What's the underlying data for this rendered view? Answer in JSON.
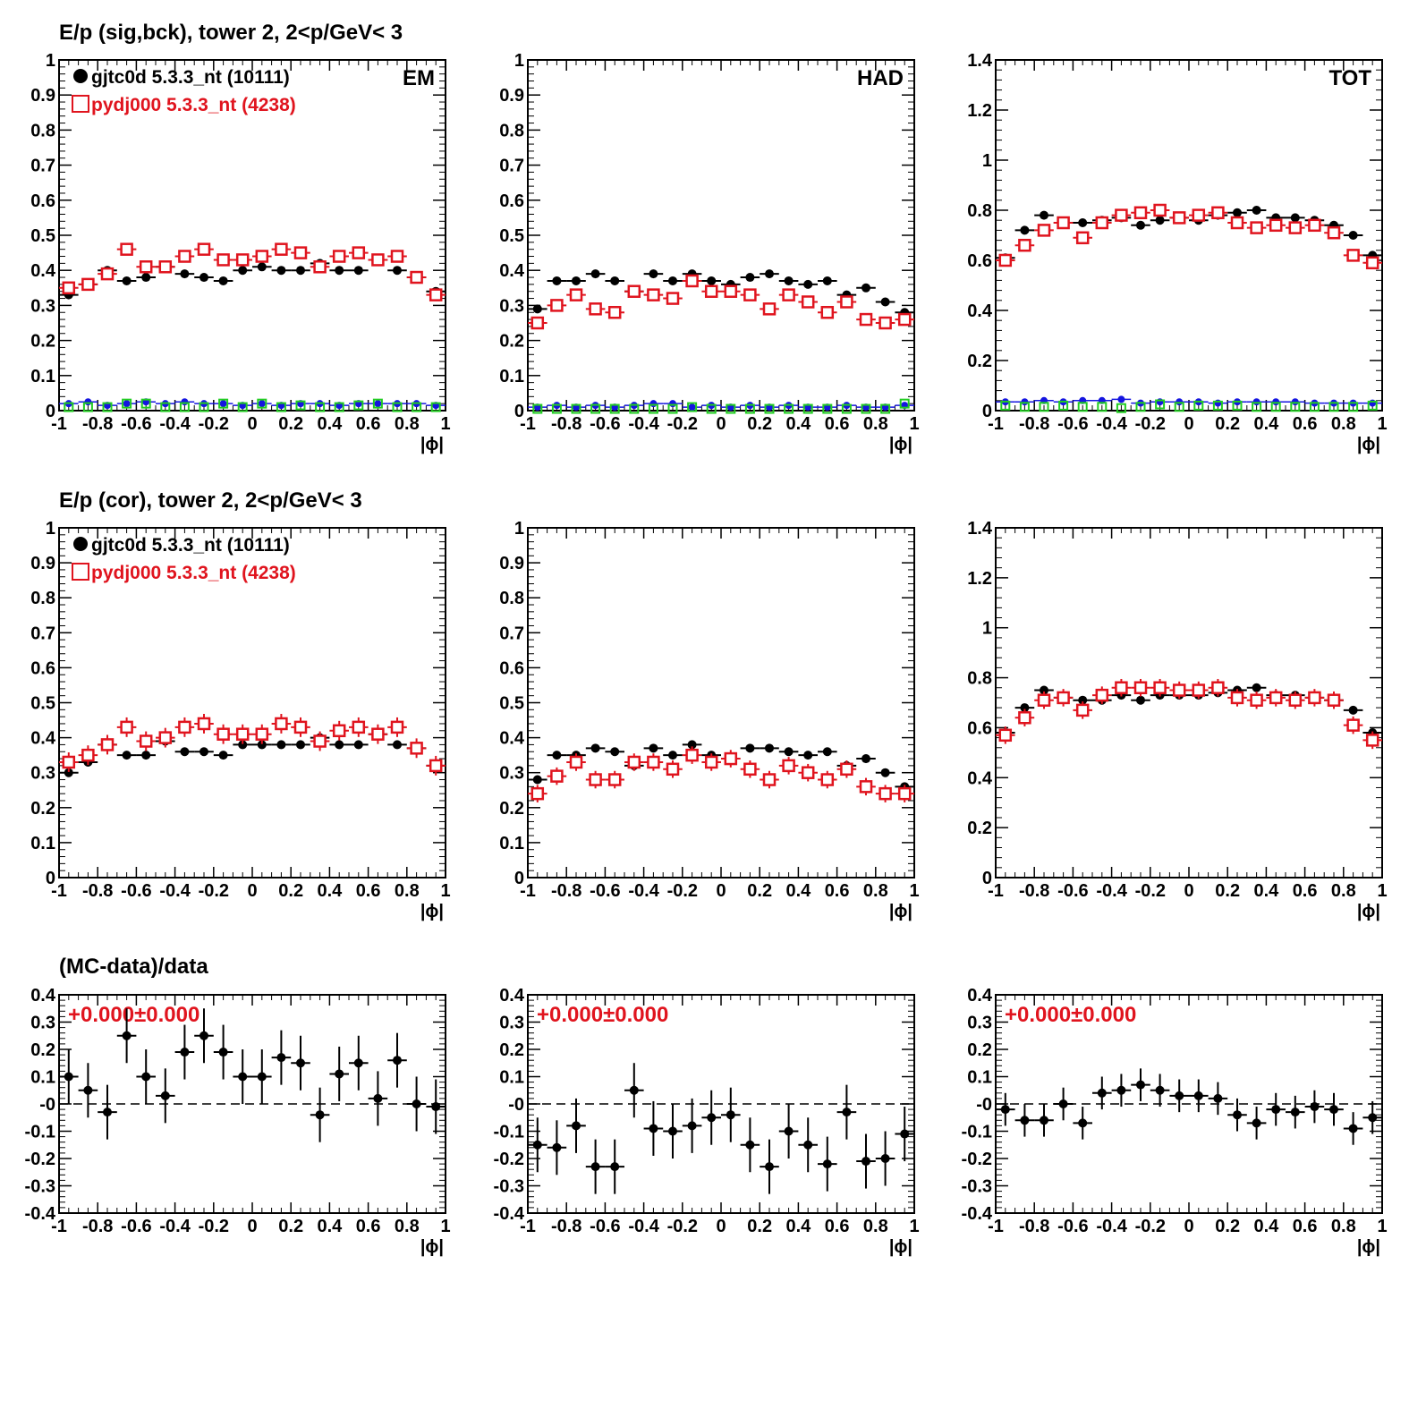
{
  "colors": {
    "data": "#000000",
    "mc": "#e0141e",
    "bg_blue": "#1414e0",
    "bg_green": "#22cc22"
  },
  "row_titles": [
    "E/p (sig,bck), tower 2,  2<p/GeV< 3",
    "E/p (cor), tower 2,  2<p/GeV< 3",
    "(MC-data)/data"
  ],
  "legend": {
    "data": "gjtc0d 5.3.3_nt (10111)",
    "mc": "pydj000 5.3.3_nt (4238)"
  },
  "fit_label": "+0.000±0.000",
  "chart_data": [
    {
      "type": "scatter",
      "row": 0,
      "col": 0,
      "tag": "EM",
      "xlabel": "|ϕ|",
      "xlim": [
        -1,
        1
      ],
      "ylim": [
        0,
        1
      ],
      "yticks": [
        0,
        0.1,
        0.2,
        0.3,
        0.4,
        0.5,
        0.6,
        0.7,
        0.8,
        0.9,
        1
      ],
      "ytick_labels": [
        "0",
        "0.1",
        "0.2",
        "0.3",
        "0.4",
        "0.5",
        "0.6",
        "0.7",
        "0.8",
        "0.9",
        "1"
      ],
      "legend": true,
      "series": [
        {
          "key": "data",
          "name": "gjtc0d 5.3.3_nt (10111)",
          "marker": "filled-circle",
          "values": [
            0.33,
            0.36,
            0.4,
            0.37,
            0.38,
            0.41,
            0.39,
            0.38,
            0.37,
            0.4,
            0.41,
            0.4,
            0.4,
            0.42,
            0.4,
            0.4,
            0.43,
            0.4,
            0.38,
            0.34
          ],
          "yerr": 0.006
        },
        {
          "key": "mc",
          "name": "pydj000 5.3.3_nt (4238)",
          "marker": "open-square",
          "values": [
            0.35,
            0.36,
            0.39,
            0.46,
            0.41,
            0.41,
            0.44,
            0.46,
            0.43,
            0.43,
            0.44,
            0.46,
            0.45,
            0.41,
            0.44,
            0.45,
            0.43,
            0.44,
            0.38,
            0.33
          ],
          "yerr": 0.012
        },
        {
          "key": "bg_blue",
          "marker": "small-circle",
          "values": [
            0.02,
            0.025,
            0.015,
            0.02,
            0.025,
            0.02,
            0.025,
            0.02,
            0.02,
            0.015,
            0.02,
            0.015,
            0.02,
            0.02,
            0.015,
            0.02,
            0.02,
            0.02,
            0.02,
            0.015
          ],
          "yerr": 0
        },
        {
          "key": "bg_green",
          "marker": "open-square-small",
          "values": [
            0.01,
            0.01,
            0.01,
            0.02,
            0.02,
            0.01,
            0.01,
            0.01,
            0.02,
            0.01,
            0.02,
            0.01,
            0.015,
            0.01,
            0.01,
            0.015,
            0.02,
            0.01,
            0.01,
            0.01
          ],
          "yerr": 0
        }
      ]
    },
    {
      "type": "scatter",
      "row": 0,
      "col": 1,
      "tag": "HAD",
      "xlabel": "|ϕ|",
      "xlim": [
        -1,
        1
      ],
      "ylim": [
        0,
        1
      ],
      "yticks": [
        0,
        0.1,
        0.2,
        0.3,
        0.4,
        0.5,
        0.6,
        0.7,
        0.8,
        0.9,
        1
      ],
      "ytick_labels": [
        "0",
        "0.1",
        "0.2",
        "0.3",
        "0.4",
        "0.5",
        "0.6",
        "0.7",
        "0.8",
        "0.9",
        "1"
      ],
      "legend": false,
      "series": [
        {
          "key": "data",
          "marker": "filled-circle",
          "values": [
            0.29,
            0.37,
            0.37,
            0.39,
            0.37,
            0.34,
            0.39,
            0.37,
            0.39,
            0.37,
            0.36,
            0.38,
            0.39,
            0.37,
            0.36,
            0.37,
            0.33,
            0.35,
            0.31,
            0.28
          ],
          "yerr": 0.008
        },
        {
          "key": "mc",
          "marker": "open-square",
          "values": [
            0.25,
            0.3,
            0.33,
            0.29,
            0.28,
            0.34,
            0.33,
            0.32,
            0.37,
            0.34,
            0.34,
            0.33,
            0.29,
            0.33,
            0.31,
            0.28,
            0.31,
            0.26,
            0.25,
            0.26
          ],
          "yerr": 0.015
        },
        {
          "key": "bg_blue",
          "marker": "small-circle",
          "values": [
            0.01,
            0.015,
            0.01,
            0.015,
            0.01,
            0.015,
            0.02,
            0.02,
            0.01,
            0.015,
            0.01,
            0.015,
            0.01,
            0.015,
            0.01,
            0.01,
            0.015,
            0.01,
            0.01,
            0.015
          ],
          "yerr": 0
        },
        {
          "key": "bg_green",
          "marker": "open-square-small",
          "values": [
            0.005,
            0.005,
            0.005,
            0.005,
            0.005,
            0.005,
            0.005,
            0.005,
            0.01,
            0.005,
            0.005,
            0.005,
            0.005,
            0.005,
            0.005,
            0.005,
            0.005,
            0.005,
            0.005,
            0.02
          ],
          "yerr": 0
        }
      ]
    },
    {
      "type": "scatter",
      "row": 0,
      "col": 2,
      "tag": "TOT",
      "xlabel": "|ϕ|",
      "xlim": [
        -1,
        1
      ],
      "ylim": [
        0,
        1.4
      ],
      "yticks": [
        0,
        0.2,
        0.4,
        0.6,
        0.8,
        1,
        1.2,
        1.4
      ],
      "ytick_labels": [
        "0",
        "0.2",
        "0.4",
        "0.6",
        "0.8",
        "1",
        "1.2",
        "1.4"
      ],
      "legend": false,
      "series": [
        {
          "key": "data",
          "marker": "filled-circle",
          "values": [
            0.61,
            0.72,
            0.78,
            0.75,
            0.75,
            0.76,
            0.77,
            0.74,
            0.76,
            0.77,
            0.76,
            0.78,
            0.79,
            0.8,
            0.77,
            0.77,
            0.76,
            0.74,
            0.7,
            0.62
          ],
          "yerr": 0.008
        },
        {
          "key": "mc",
          "marker": "open-square",
          "values": [
            0.6,
            0.66,
            0.72,
            0.75,
            0.69,
            0.75,
            0.78,
            0.79,
            0.8,
            0.77,
            0.78,
            0.79,
            0.75,
            0.73,
            0.74,
            0.73,
            0.74,
            0.71,
            0.62,
            0.59
          ],
          "yerr": 0.015
        },
        {
          "key": "bg_blue",
          "marker": "small-circle",
          "values": [
            0.035,
            0.035,
            0.04,
            0.035,
            0.04,
            0.04,
            0.045,
            0.03,
            0.035,
            0.035,
            0.035,
            0.03,
            0.035,
            0.035,
            0.035,
            0.035,
            0.03,
            0.03,
            0.03,
            0.03
          ],
          "yerr": 0
        },
        {
          "key": "bg_green",
          "marker": "open-square-small",
          "values": [
            0.02,
            0.015,
            0.015,
            0.02,
            0.015,
            0.015,
            0.01,
            0.015,
            0.025,
            0.015,
            0.02,
            0.02,
            0.02,
            0.015,
            0.015,
            0.015,
            0.015,
            0.015,
            0.015,
            0.02
          ],
          "yerr": 0
        }
      ]
    },
    {
      "type": "scatter",
      "row": 1,
      "col": 0,
      "tag": "",
      "xlabel": "|ϕ|",
      "xlim": [
        -1,
        1
      ],
      "ylim": [
        0,
        1
      ],
      "yticks": [
        0,
        0.1,
        0.2,
        0.3,
        0.4,
        0.5,
        0.6,
        0.7,
        0.8,
        0.9,
        1
      ],
      "ytick_labels": [
        "0",
        "0.1",
        "0.2",
        "0.3",
        "0.4",
        "0.5",
        "0.6",
        "0.7",
        "0.8",
        "0.9",
        "1"
      ],
      "legend": true,
      "series": [
        {
          "key": "data",
          "name": "gjtc0d 5.3.3_nt (10111)",
          "marker": "filled-circle",
          "values": [
            0.3,
            0.33,
            0.38,
            0.35,
            0.35,
            0.39,
            0.36,
            0.36,
            0.35,
            0.38,
            0.38,
            0.38,
            0.38,
            0.4,
            0.38,
            0.38,
            0.41,
            0.38,
            0.37,
            0.32
          ],
          "yerr": 0.012
        },
        {
          "key": "mc",
          "name": "pydj000 5.3.3_nt (4238)",
          "marker": "open-square",
          "values": [
            0.33,
            0.35,
            0.38,
            0.43,
            0.39,
            0.4,
            0.43,
            0.44,
            0.41,
            0.41,
            0.41,
            0.44,
            0.43,
            0.39,
            0.42,
            0.43,
            0.41,
            0.43,
            0.37,
            0.32
          ],
          "yerr": 0.028
        }
      ]
    },
    {
      "type": "scatter",
      "row": 1,
      "col": 1,
      "tag": "",
      "xlabel": "|ϕ|",
      "xlim": [
        -1,
        1
      ],
      "ylim": [
        0,
        1
      ],
      "yticks": [
        0,
        0.1,
        0.2,
        0.3,
        0.4,
        0.5,
        0.6,
        0.7,
        0.8,
        0.9,
        1
      ],
      "ytick_labels": [
        "0",
        "0.1",
        "0.2",
        "0.3",
        "0.4",
        "0.5",
        "0.6",
        "0.7",
        "0.8",
        "0.9",
        "1"
      ],
      "legend": false,
      "series": [
        {
          "key": "data",
          "marker": "filled-circle",
          "values": [
            0.28,
            0.35,
            0.35,
            0.37,
            0.36,
            0.32,
            0.37,
            0.35,
            0.38,
            0.35,
            0.34,
            0.37,
            0.37,
            0.36,
            0.35,
            0.36,
            0.32,
            0.34,
            0.3,
            0.26
          ],
          "yerr": 0.012
        },
        {
          "key": "mc",
          "marker": "open-square",
          "values": [
            0.24,
            0.29,
            0.33,
            0.28,
            0.28,
            0.33,
            0.33,
            0.31,
            0.35,
            0.33,
            0.34,
            0.31,
            0.28,
            0.32,
            0.3,
            0.28,
            0.31,
            0.26,
            0.24,
            0.24
          ],
          "yerr": 0.025
        }
      ]
    },
    {
      "type": "scatter",
      "row": 1,
      "col": 2,
      "tag": "",
      "xlabel": "|ϕ|",
      "xlim": [
        -1,
        1
      ],
      "ylim": [
        0,
        1.4
      ],
      "yticks": [
        0,
        0.2,
        0.4,
        0.6,
        0.8,
        1,
        1.2,
        1.4
      ],
      "ytick_labels": [
        "0",
        "0.2",
        "0.4",
        "0.6",
        "0.8",
        "1",
        "1.2",
        "1.4"
      ],
      "legend": false,
      "series": [
        {
          "key": "data",
          "marker": "filled-circle",
          "values": [
            0.58,
            0.68,
            0.75,
            0.72,
            0.71,
            0.71,
            0.73,
            0.71,
            0.73,
            0.73,
            0.73,
            0.74,
            0.75,
            0.76,
            0.73,
            0.73,
            0.72,
            0.71,
            0.67,
            0.58
          ],
          "yerr": 0.012
        },
        {
          "key": "mc",
          "marker": "open-square",
          "values": [
            0.57,
            0.64,
            0.71,
            0.72,
            0.67,
            0.73,
            0.76,
            0.76,
            0.76,
            0.75,
            0.75,
            0.76,
            0.72,
            0.71,
            0.72,
            0.71,
            0.72,
            0.71,
            0.61,
            0.55
          ],
          "yerr": 0.035
        }
      ]
    },
    {
      "type": "scatter",
      "row": 2,
      "col": 0,
      "tag": "",
      "xlabel": "|ϕ|",
      "xlim": [
        -1,
        1
      ],
      "ylim": [
        -0.4,
        0.4
      ],
      "yticks": [
        -0.4,
        -0.3,
        -0.2,
        -0.1,
        0,
        0.1,
        0.2,
        0.3,
        0.4
      ],
      "ytick_labels": [
        "-0.4",
        "-0.3",
        "-0.2",
        "-0.1",
        "-0",
        "0.1",
        "0.2",
        "0.3",
        "0.4"
      ],
      "legend": false,
      "ratio": true,
      "series": [
        {
          "key": "data",
          "marker": "filled-circle",
          "values": [
            0.1,
            0.05,
            -0.03,
            0.25,
            0.1,
            0.03,
            0.19,
            0.25,
            0.19,
            0.1,
            0.1,
            0.17,
            0.15,
            -0.04,
            0.11,
            0.15,
            0.02,
            0.16,
            0.0,
            -0.01
          ],
          "yerr": 0.1
        }
      ]
    },
    {
      "type": "scatter",
      "row": 2,
      "col": 1,
      "tag": "",
      "xlabel": "|ϕ|",
      "xlim": [
        -1,
        1
      ],
      "ylim": [
        -0.4,
        0.4
      ],
      "yticks": [
        -0.4,
        -0.3,
        -0.2,
        -0.1,
        0,
        0.1,
        0.2,
        0.3,
        0.4
      ],
      "ytick_labels": [
        "-0.4",
        "-0.3",
        "-0.2",
        "-0.1",
        "-0",
        "0.1",
        "0.2",
        "0.3",
        "0.4"
      ],
      "legend": false,
      "ratio": true,
      "series": [
        {
          "key": "data",
          "marker": "filled-circle",
          "values": [
            -0.15,
            -0.16,
            -0.08,
            -0.23,
            -0.23,
            0.05,
            -0.09,
            -0.1,
            -0.08,
            -0.05,
            -0.04,
            -0.15,
            -0.23,
            -0.1,
            -0.15,
            -0.22,
            -0.03,
            -0.21,
            -0.2,
            -0.11
          ],
          "yerr": 0.1
        }
      ]
    },
    {
      "type": "scatter",
      "row": 2,
      "col": 2,
      "tag": "",
      "xlabel": "|ϕ|",
      "xlim": [
        -1,
        1
      ],
      "ylim": [
        -0.4,
        0.4
      ],
      "yticks": [
        -0.4,
        -0.3,
        -0.2,
        -0.1,
        0,
        0.1,
        0.2,
        0.3,
        0.4
      ],
      "ytick_labels": [
        "-0.4",
        "-0.3",
        "-0.2",
        "-0.1",
        "-0",
        "0.1",
        "0.2",
        "0.3",
        "0.4"
      ],
      "legend": false,
      "ratio": true,
      "series": [
        {
          "key": "data",
          "marker": "filled-circle",
          "values": [
            -0.02,
            -0.06,
            -0.06,
            0.0,
            -0.07,
            0.04,
            0.05,
            0.07,
            0.05,
            0.03,
            0.03,
            0.02,
            -0.04,
            -0.07,
            -0.02,
            -0.03,
            -0.01,
            -0.02,
            -0.09,
            -0.05
          ],
          "yerr": 0.06
        }
      ]
    }
  ],
  "xticks": [
    -1,
    -0.8,
    -0.6,
    -0.4,
    -0.2,
    0,
    0.2,
    0.4,
    0.6,
    0.8,
    1
  ],
  "xtick_labels": [
    "-1",
    "-0.8",
    "-0.6",
    "-0.4",
    "-0.2",
    "0",
    "0.2",
    "0.4",
    "0.6",
    "0.8",
    "1"
  ]
}
